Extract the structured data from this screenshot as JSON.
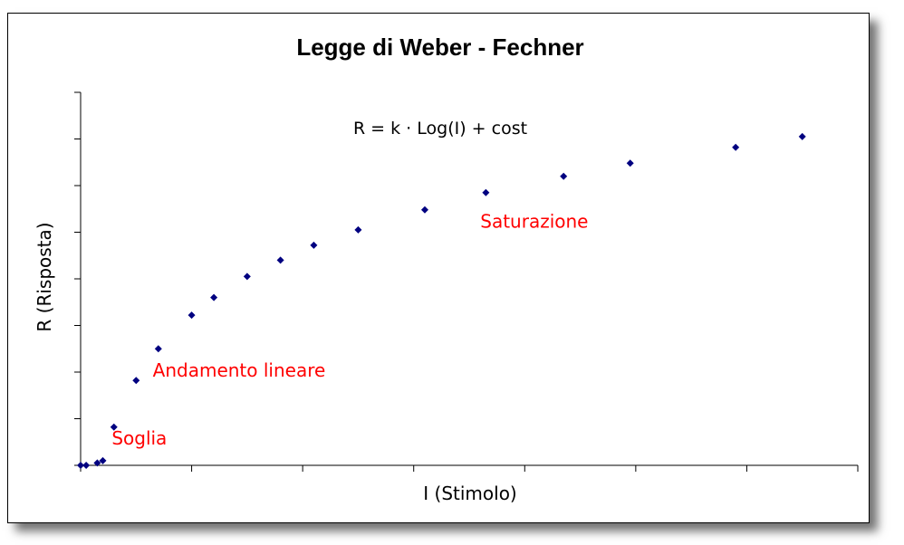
{
  "chart_data": {
    "type": "scatter",
    "title": "Legge di Weber - Fechner",
    "xlabel": "I (Stimolo)",
    "ylabel": "R (Risposta)",
    "equation": "R = k · Log(I) + cost",
    "xlim": [
      0,
      7
    ],
    "ylim": [
      0,
      8
    ],
    "x_tick_count": 7,
    "y_tick_count": 8,
    "tick_labels_shown": false,
    "grid": false,
    "legend": "none",
    "marker": "diamond",
    "series_color": "#000080",
    "annotation_color": "#ff0000",
    "annotations": [
      {
        "text": "Soglia",
        "x": 0.28,
        "y": 0.45
      },
      {
        "text": "Andamento lineare",
        "x": 0.65,
        "y": 1.9
      },
      {
        "text": "Saturazione",
        "x": 3.6,
        "y": 5.1
      }
    ],
    "x": [
      0,
      0.05,
      0.15,
      0.2,
      0.3,
      0.5,
      0.7,
      1.0,
      1.2,
      1.5,
      1.8,
      2.1,
      2.5,
      3.1,
      3.65,
      4.35,
      4.95,
      5.9,
      6.5
    ],
    "y": [
      0,
      0.0,
      0.05,
      0.1,
      0.82,
      1.82,
      2.5,
      3.22,
      3.6,
      4.05,
      4.4,
      4.72,
      5.05,
      5.48,
      5.85,
      6.2,
      6.48,
      6.82,
      7.05
    ]
  }
}
